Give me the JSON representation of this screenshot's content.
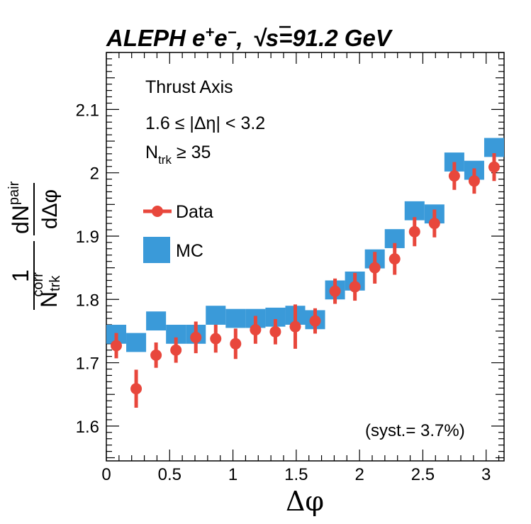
{
  "chart_data": {
    "type": "scatter",
    "title_parts": {
      "experiment": "ALEPH e",
      "sup_plus": "+",
      "e": "e",
      "sup_minus": "−",
      "comma": ",",
      "sqrt": "√",
      "energy": "s=91.2 GeV"
    },
    "annotations": {
      "axis": "Thrust Axis",
      "eta_cut": "1.6 ≤ |Δη| < 3.2",
      "ntrk_n": "N",
      "ntrk_sub": "trk",
      "ntrk_rest": " ≥ 35",
      "syst": "(syst.= 3.7%)"
    },
    "xlabel": "Δφ",
    "ylabel_parts": {
      "one": "1",
      "n_corr_n": "N",
      "n_corr_sub": "trk",
      "n_corr_sup": "corr",
      "dn": "dN",
      "dn_sup": "pair",
      "dphi": "dΔφ"
    },
    "xlim": [
      0,
      3.14159
    ],
    "ylim": [
      1.545,
      2.19
    ],
    "xticks": [
      {
        "value": 0,
        "label": "0"
      },
      {
        "value": 0.5,
        "label": "0.5"
      },
      {
        "value": 1,
        "label": "1"
      },
      {
        "value": 1.5,
        "label": "1.5"
      },
      {
        "value": 2,
        "label": "2"
      },
      {
        "value": 2.5,
        "label": "2.5"
      },
      {
        "value": 3,
        "label": "3"
      }
    ],
    "yticks": [
      {
        "value": 1.6,
        "label": "1.6"
      },
      {
        "value": 1.7,
        "label": "1.7"
      },
      {
        "value": 1.8,
        "label": "1.8"
      },
      {
        "value": 1.9,
        "label": "1.9"
      },
      {
        "value": 2.0,
        "label": "2"
      },
      {
        "value": 2.1,
        "label": "2.1"
      }
    ],
    "legend": [
      {
        "name": "Data",
        "color": "#e8473c",
        "style": "marker"
      },
      {
        "name": "MC",
        "color": "#3a9ad9",
        "style": "box"
      }
    ],
    "series": [
      {
        "name": "Data",
        "color": "#e8473c",
        "x": [
          0.0785,
          0.2356,
          0.3927,
          0.5498,
          0.7069,
          0.8639,
          1.021,
          1.1781,
          1.3352,
          1.4923,
          1.6493,
          1.8064,
          1.9635,
          2.1206,
          2.2777,
          2.4347,
          2.5918,
          2.7489,
          2.906,
          3.0631
        ],
        "y": [
          1.727,
          1.659,
          1.712,
          1.72,
          1.74,
          1.738,
          1.73,
          1.752,
          1.749,
          1.757,
          1.766,
          1.813,
          1.82,
          1.85,
          1.864,
          1.907,
          1.92,
          1.995,
          1.987,
          2.009
        ],
        "err": [
          0.02,
          0.03,
          0.02,
          0.02,
          0.025,
          0.022,
          0.024,
          0.022,
          0.02,
          0.035,
          0.02,
          0.02,
          0.022,
          0.025,
          0.025,
          0.023,
          0.022,
          0.022,
          0.02,
          0.022
        ]
      },
      {
        "name": "MC",
        "color": "#3a9ad9",
        "x": [
          0.0785,
          0.2356,
          0.3927,
          0.5498,
          0.7069,
          0.8639,
          1.021,
          1.1781,
          1.3352,
          1.4923,
          1.6493,
          1.8064,
          1.9635,
          2.1206,
          2.2777,
          2.4347,
          2.5918,
          2.7489,
          2.906,
          3.0631
        ],
        "y": [
          1.745,
          1.732,
          1.766,
          1.745,
          1.745,
          1.775,
          1.77,
          1.77,
          1.772,
          1.775,
          1.768,
          1.815,
          1.829,
          1.864,
          1.896,
          1.94,
          1.935,
          2.017,
          2.004,
          2.04
        ],
        "err": [
          0.015,
          0.015,
          0.015,
          0.015,
          0.015,
          0.015,
          0.015,
          0.015,
          0.015,
          0.015,
          0.015,
          0.015,
          0.015,
          0.015,
          0.015,
          0.015,
          0.015,
          0.015,
          0.015,
          0.015
        ]
      }
    ]
  }
}
